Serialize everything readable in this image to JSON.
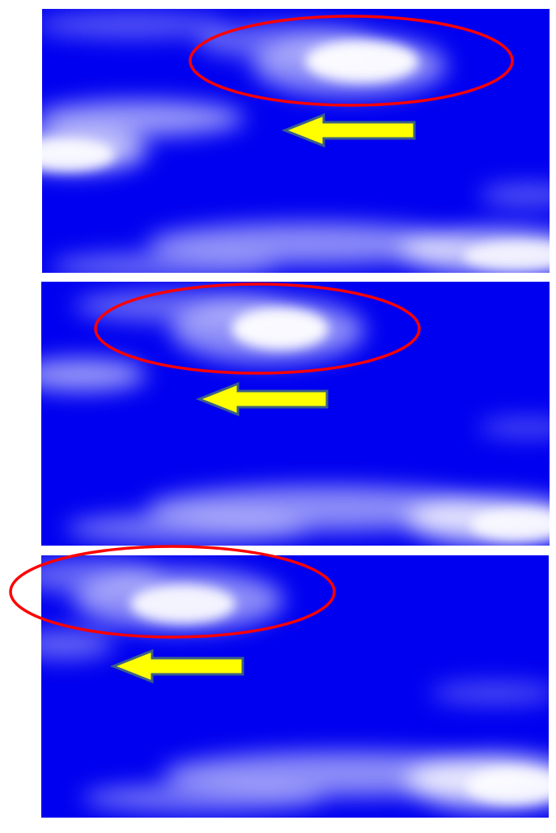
{
  "colors": {
    "background": "#ffffff",
    "sky": "#0000f0",
    "cloud": "#ffffff",
    "ellipse_stroke": "#ff0000",
    "arrow_fill": "#ffff00",
    "arrow_stroke": "#3b5f8a"
  },
  "frames": [
    {
      "name": "sky-frame-1",
      "elements": [
        "cloud-highlight-ellipse",
        "leftward-arrow-icon"
      ]
    },
    {
      "name": "sky-frame-2",
      "elements": [
        "cloud-highlight-ellipse",
        "leftward-arrow-icon"
      ]
    },
    {
      "name": "sky-frame-3",
      "elements": [
        "cloud-highlight-ellipse",
        "leftward-arrow-icon"
      ]
    }
  ]
}
